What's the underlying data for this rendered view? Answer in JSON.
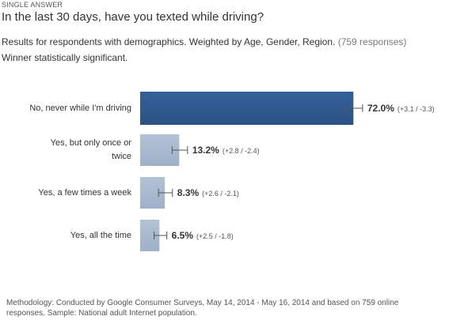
{
  "header": {
    "kicker": "SINGLE ANSWER",
    "question": "In the last 30 days, have you texted while driving?",
    "subtitle_main": "Results for respondents with demographics. Weighted by Age, Gender, Region.",
    "subtitle_responses": "(759 responses)",
    "subtitle_line2": "Winner statistically significant."
  },
  "footer": {
    "methodology": "Methodology: Conducted by Google Consumer Surveys, May 14, 2014 - May 16, 2014 and based on 759 online responses. Sample: National adult Internet population."
  },
  "colors": {
    "winner_bar": "#2b5283",
    "other_bar": "#9fb1c8",
    "error_bar": "#555555"
  },
  "chart_data": {
    "type": "bar",
    "orientation": "horizontal",
    "categories": [
      "No, never while I'm driving",
      "Yes, but only once or twice",
      "Yes, a few times a week",
      "Yes, all the time"
    ],
    "values": [
      72.0,
      13.2,
      8.3,
      6.5
    ],
    "value_labels": [
      "72.0%",
      "13.2%",
      "8.3%",
      "6.5%"
    ],
    "error_plus": [
      3.1,
      2.8,
      2.6,
      2.5
    ],
    "error_minus": [
      3.3,
      2.4,
      2.1,
      1.8
    ],
    "error_labels": [
      "(+3.1 / -3.3)",
      "(+2.8 / -2.4)",
      "(+2.6 / -2.1)",
      "(+2.5 / -1.8)"
    ],
    "winner_index": 0,
    "xlim": [
      0,
      100
    ],
    "grid": false
  }
}
